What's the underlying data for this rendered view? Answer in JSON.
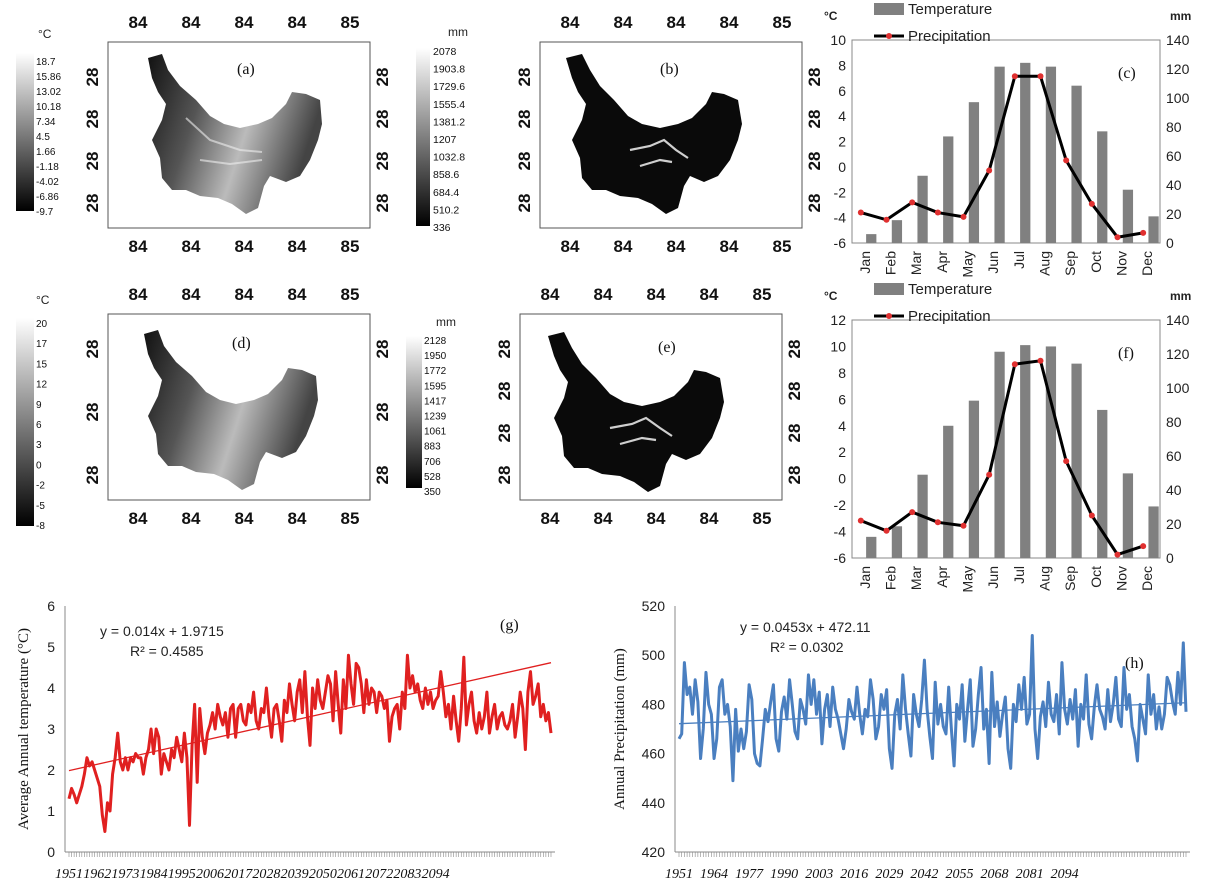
{
  "maps": [
    {
      "panel": "(a)",
      "unit": "°C",
      "scale": [
        "18.7",
        "15.86",
        "13.02",
        "10.18",
        "7.34",
        "4.5",
        "1.66",
        "-1.18",
        "-4.02",
        "-6.86",
        "-9.7"
      ],
      "lon_labels": [
        "84",
        "84",
        "84",
        "84",
        "85"
      ],
      "lat_labels": [
        "28",
        "28",
        "28",
        "28"
      ]
    },
    {
      "panel": "(b)",
      "unit": "mm",
      "scale": [
        "2078",
        "1903.8",
        "1729.6",
        "1555.4",
        "1381.2",
        "1207",
        "1032.8",
        "858.6",
        "684.4",
        "510.2",
        "336"
      ],
      "lon_labels": [
        "84",
        "84",
        "84",
        "84",
        "85"
      ],
      "lat_labels": [
        "28",
        "28",
        "28",
        "28"
      ]
    },
    {
      "panel": "(d)",
      "unit": "°C",
      "scale": [
        "20",
        "17",
        "15",
        "12",
        "9",
        "6",
        "3",
        "0",
        "-2",
        "-5",
        "-8"
      ],
      "lon_labels": [
        "84",
        "84",
        "84",
        "84",
        "85"
      ],
      "lat_labels": [
        "28",
        "28",
        "28"
      ]
    },
    {
      "panel": "(e)",
      "unit": "mm",
      "scale": [
        "2128",
        "1950",
        "1772",
        "1595",
        "1417",
        "1239",
        "1061",
        "883",
        "706",
        "528",
        "350"
      ],
      "lon_labels": [
        "84",
        "84",
        "84",
        "84",
        "85"
      ],
      "lat_labels": [
        "28",
        "28",
        "28",
        "28"
      ]
    }
  ],
  "chart_data": [
    {
      "type": "bar",
      "panel": "(c)",
      "categories": [
        "Jan",
        "Feb",
        "Mar",
        "Apr",
        "May",
        "Jun",
        "Jul",
        "Aug",
        "Sep",
        "Oct",
        "Nov",
        "Dec"
      ],
      "series": [
        {
          "name": "Temperature",
          "axis": "left",
          "kind": "bar",
          "values": [
            -5.3,
            -4.2,
            -0.7,
            2.4,
            5.1,
            7.9,
            8.2,
            7.9,
            6.4,
            2.8,
            -1.8,
            -3.9
          ]
        },
        {
          "name": "Precipitation",
          "axis": "right",
          "kind": "line",
          "values": [
            21,
            16,
            28,
            21,
            18,
            50,
            115,
            115,
            57,
            27,
            4,
            7
          ]
        }
      ],
      "ylabel_left": "°C",
      "ylabel_right": "mm",
      "ylim_left": [
        -6,
        10
      ],
      "yticks_left": [
        -6,
        -4,
        -2,
        0,
        2,
        4,
        6,
        8,
        10
      ],
      "ylim_right": [
        0,
        140
      ],
      "yticks_right": [
        0,
        20,
        40,
        60,
        80,
        100,
        120,
        140
      ]
    },
    {
      "type": "bar",
      "panel": "(f)",
      "categories": [
        "Jan",
        "Feb",
        "Mar",
        "Apr",
        "May",
        "Jun",
        "Jul",
        "Aug",
        "Sep",
        "Oct",
        "Nov",
        "Dec"
      ],
      "series": [
        {
          "name": "Temperature",
          "axis": "left",
          "kind": "bar",
          "values": [
            -4.4,
            -3.6,
            0.3,
            4.0,
            5.9,
            9.6,
            10.1,
            10.0,
            8.7,
            5.2,
            0.4,
            -2.1
          ]
        },
        {
          "name": "Precipitation",
          "axis": "right",
          "kind": "line",
          "values": [
            22,
            16,
            27,
            21,
            19,
            49,
            114,
            116,
            57,
            25,
            2,
            7
          ]
        }
      ],
      "ylabel_left": "°C",
      "ylabel_right": "mm",
      "ylim_left": [
        -6,
        12
      ],
      "yticks_left": [
        -6,
        -4,
        -2,
        0,
        2,
        4,
        6,
        8,
        10,
        12
      ],
      "ylim_right": [
        0,
        140
      ],
      "yticks_right": [
        0,
        20,
        40,
        60,
        80,
        100,
        120,
        140
      ]
    },
    {
      "type": "line",
      "panel": "(g)",
      "ylabel": "Average  Annual temperature (°C)",
      "ylim": [
        0,
        6
      ],
      "yticks": [
        0,
        1,
        2,
        3,
        4,
        5,
        6
      ],
      "xlabels": [
        "1951",
        "1962",
        "1973",
        "1984",
        "1995",
        "2006",
        "2017",
        "2028",
        "2039",
        "2050",
        "2061",
        "2072",
        "2083",
        "2094"
      ],
      "equation": "y = 0.014x + 1.9715",
      "r2": "R² = 0.4585",
      "color": "#e02020",
      "trend": {
        "slope": 0.014,
        "intercept": 1.9715
      },
      "x_start": 1951,
      "values": [
        1.3,
        1.55,
        1.4,
        1.2,
        1.4,
        1.6,
        1.9,
        2.3,
        2.1,
        2.2,
        2.0,
        1.8,
        1.6,
        0.9,
        0.5,
        1.2,
        1.0,
        1.9,
        2.3,
        2.9,
        2.2,
        2.0,
        2.3,
        2.0,
        2.3,
        2.2,
        2.4,
        2.3,
        2.3,
        1.9,
        2.3,
        2.5,
        3.0,
        2.4,
        3.0,
        2.8,
        1.9,
        2.4,
        2.2,
        2.0,
        2.5,
        2.3,
        2.8,
        2.5,
        2.2,
        2.9,
        2.3,
        0.65,
        2.6,
        3.6,
        1.7,
        3.5,
        2.8,
        2.4,
        2.9,
        3.1,
        3.4,
        3.0,
        3.6,
        3.3,
        3.1,
        3.4,
        2.8,
        3.5,
        3.6,
        2.8,
        3.5,
        3.6,
        3.2,
        3.1,
        3.6,
        3.4,
        3.9,
        3.2,
        3.0,
        3.5,
        3.4,
        4.0,
        3.3,
        2.8,
        3.5,
        3.6,
        3.2,
        2.7,
        3.7,
        3.4,
        4.1,
        3.6,
        3.2,
        3.9,
        4.2,
        3.4,
        4.4,
        3.3,
        2.6,
        4.0,
        3.5,
        4.2,
        3.7,
        3.5,
        3.9,
        4.3,
        4.1,
        3.2,
        4.4,
        3.6,
        2.9,
        4.2,
        3.5,
        4.8,
        4.1,
        3.6,
        4.6,
        4.5,
        4.1,
        3.4,
        4.2,
        3.6,
        4.0,
        3.9,
        3.4,
        3.9,
        3.8,
        3.5,
        3.7,
        2.7,
        3.3,
        3.5,
        3.6,
        3.0,
        3.9,
        3.5,
        4.8,
        4.0,
        4.3,
        3.9,
        4.1,
        3.7,
        3.5,
        4.0,
        3.6,
        3.9,
        3.5,
        3.7,
        3.8,
        4.4,
        3.9,
        3.3,
        3.6,
        3.0,
        3.8,
        3.2,
        2.7,
        3.5,
        4.75,
        3.1,
        3.6,
        3.9,
        3.2,
        2.9,
        3.4,
        3.0,
        3.3,
        3.9,
        2.9,
        3.3,
        3.6,
        3.0,
        3.3,
        3.4,
        3.1,
        3.0,
        3.2,
        3.6,
        2.8,
        3.3,
        3.9,
        3.5,
        2.5,
        3.9,
        4.4,
        3.6,
        3.8,
        4.1,
        3.3,
        3.6,
        3.2,
        3.4,
        2.9
      ]
    },
    {
      "type": "line",
      "panel": "(h)",
      "ylabel": "Annual Precipitation (mm)",
      "ylim": [
        420,
        520
      ],
      "yticks": [
        420,
        440,
        460,
        480,
        500,
        520
      ],
      "xlabels": [
        "1951",
        "1964",
        "1977",
        "1990",
        "2003",
        "2016",
        "2029",
        "2042",
        "2055",
        "2068",
        "2081",
        "2094"
      ],
      "equation": "y = 0.0453x + 472.11",
      "r2": "R² = 0.0302",
      "color": "#4a7fc0",
      "trend": {
        "slope": 0.0453,
        "intercept": 472.11
      },
      "x_start": 1951,
      "values": [
        466,
        468,
        497,
        484,
        487,
        476,
        490,
        481,
        458,
        470,
        493,
        480,
        476,
        458,
        466,
        487,
        490,
        476,
        480,
        471,
        449,
        478,
        461,
        470,
        462,
        469,
        488,
        482,
        460,
        456,
        455,
        466,
        478,
        473,
        481,
        488,
        466,
        461,
        477,
        483,
        474,
        490,
        480,
        469,
        466,
        482,
        478,
        472,
        492,
        480,
        490,
        476,
        485,
        464,
        478,
        484,
        471,
        487,
        478,
        474,
        468,
        462,
        470,
        482,
        477,
        474,
        487,
        476,
        468,
        478,
        475,
        490,
        482,
        466,
        471,
        484,
        478,
        486,
        462,
        454,
        476,
        482,
        470,
        492,
        478,
        468,
        459,
        484,
        476,
        471,
        482,
        498,
        478,
        467,
        458,
        489,
        472,
        480,
        471,
        468,
        487,
        470,
        455,
        480,
        474,
        488,
        465,
        478,
        490,
        463,
        470,
        484,
        495,
        470,
        478,
        456,
        493,
        471,
        481,
        467,
        476,
        483,
        462,
        454,
        480,
        473,
        488,
        478,
        491,
        472,
        476,
        508,
        470,
        458,
        475,
        481,
        471,
        489,
        476,
        473,
        484,
        468,
        497,
        478,
        472,
        482,
        474,
        486,
        463,
        480,
        474,
        492,
        472,
        466,
        479,
        488,
        478,
        475,
        470,
        486,
        473,
        480,
        491,
        474,
        471,
        495,
        478,
        484,
        471,
        466,
        457,
        480,
        474,
        468,
        492,
        476,
        484,
        470,
        479,
        470,
        476,
        491,
        488,
        481,
        476,
        493,
        480,
        505,
        477
      ]
    }
  ]
}
